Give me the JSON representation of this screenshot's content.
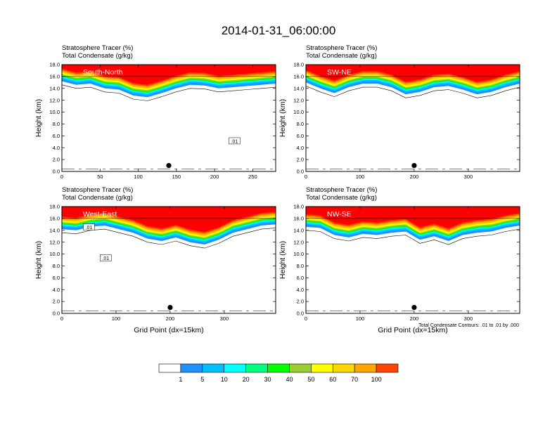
{
  "title": "2014-01-31_06:00:00",
  "footnote": "Total Condensate Contours: .01 to .01 by .000",
  "colors": {
    "levels": [
      "#ffffff",
      "#1e90ff",
      "#00bfff",
      "#00ffff",
      "#00ff7f",
      "#00ff00",
      "#9acd32",
      "#ffff00",
      "#ffd700",
      "#ffa500",
      "#ff4500",
      "#ff0000"
    ],
    "contour": "#000000"
  },
  "labelbar": {
    "ticks": [
      "1",
      "5",
      "10",
      "20",
      "30",
      "40",
      "50",
      "60",
      "70",
      "100"
    ]
  },
  "chart_data": [
    {
      "type": "contour",
      "panel_label": "South-North",
      "title_line1": "Stratosphere Tracer   (%)",
      "title_line2": "Total Condensate   (g/kg)",
      "ylabel": "Height (km)",
      "xlabel": "",
      "xlim": [
        0,
        280
      ],
      "ylim": [
        0,
        18
      ],
      "xticks": [
        0,
        50,
        100,
        150,
        200,
        250
      ],
      "yticks": [
        "0.0",
        "2.0",
        "4.0",
        "6.0",
        "8.0",
        "10.0",
        "12.0",
        "14.0",
        "16.0",
        "18.0"
      ],
      "marker": {
        "x": 140,
        "y": 1.0
      },
      "contour_labels": [
        {
          "text": ".01",
          "x": 226,
          "y": 5.1
        }
      ],
      "shading_base_km": [
        15.2,
        14.6,
        14.8,
        14.0,
        13.8,
        12.8,
        12.5,
        13.2,
        14.0,
        14.6,
        14.5,
        14.0,
        14.2,
        14.4,
        14.6,
        14.8
      ]
    },
    {
      "type": "contour",
      "panel_label": "SW-NE",
      "title_line1": "Stratosphere Tracer   (%)",
      "title_line2": "Total Condensate   (g/kg)",
      "ylabel": "Height (km)",
      "xlabel": "",
      "xlim": [
        0,
        395
      ],
      "ylim": [
        0,
        18
      ],
      "xticks": [
        0,
        100,
        200,
        300
      ],
      "yticks": [
        "0.0",
        "2.0",
        "4.0",
        "6.0",
        "8.0",
        "10.0",
        "12.0",
        "14.0",
        "16.0",
        "18.0"
      ],
      "marker": {
        "x": 200,
        "y": 1.0
      },
      "contour_labels": [],
      "shading_base_km": [
        15.0,
        14.0,
        13.2,
        14.2,
        14.8,
        14.8,
        14.2,
        13.0,
        13.4,
        14.2,
        14.4,
        13.8,
        13.0,
        13.4,
        14.2,
        14.8
      ]
    },
    {
      "type": "contour",
      "panel_label": "West-East",
      "title_line1": "Stratosphere Tracer   (%)",
      "title_line2": "Total Condensate   (g/kg)",
      "ylabel": "Height (km)",
      "xlabel": "Grid Point (dx=15km)",
      "xlim": [
        0,
        395
      ],
      "ylim": [
        0,
        18
      ],
      "xticks": [
        0,
        100,
        200,
        300
      ],
      "yticks": [
        "0.0",
        "2.0",
        "4.0",
        "6.0",
        "8.0",
        "10.0",
        "12.0",
        "14.0",
        "16.0",
        "18.0"
      ],
      "marker": {
        "x": 200,
        "y": 1.0
      },
      "contour_labels": [
        {
          "text": ".01",
          "x": 50,
          "y": 14.5
        },
        {
          "text": ".01",
          "x": 81,
          "y": 9.3
        }
      ],
      "shading_base_km": [
        14.2,
        14.0,
        14.6,
        14.8,
        14.2,
        13.6,
        12.6,
        12.2,
        12.8,
        12.0,
        11.6,
        12.4,
        13.6,
        14.2,
        14.8,
        15.0
      ]
    },
    {
      "type": "contour",
      "panel_label": "NW-SE",
      "title_line1": "Stratosphere Tracer   (%)",
      "title_line2": "Total Condensate   (g/kg)",
      "ylabel": "Height (km)",
      "xlabel": "Grid Point (dx=15km)",
      "xlim": [
        0,
        395
      ],
      "ylim": [
        0,
        18
      ],
      "xticks": [
        0,
        100,
        200,
        300
      ],
      "yticks": [
        "0.0",
        "2.0",
        "4.0",
        "6.0",
        "8.0",
        "10.0",
        "12.0",
        "14.0",
        "16.0",
        "18.0"
      ],
      "marker": {
        "x": 200,
        "y": 1.0
      },
      "contour_labels": [],
      "shading_base_km": [
        14.6,
        14.4,
        13.2,
        12.8,
        13.4,
        13.2,
        13.6,
        13.8,
        12.4,
        13.0,
        12.2,
        13.2,
        13.6,
        13.8,
        14.4,
        14.8
      ]
    }
  ]
}
